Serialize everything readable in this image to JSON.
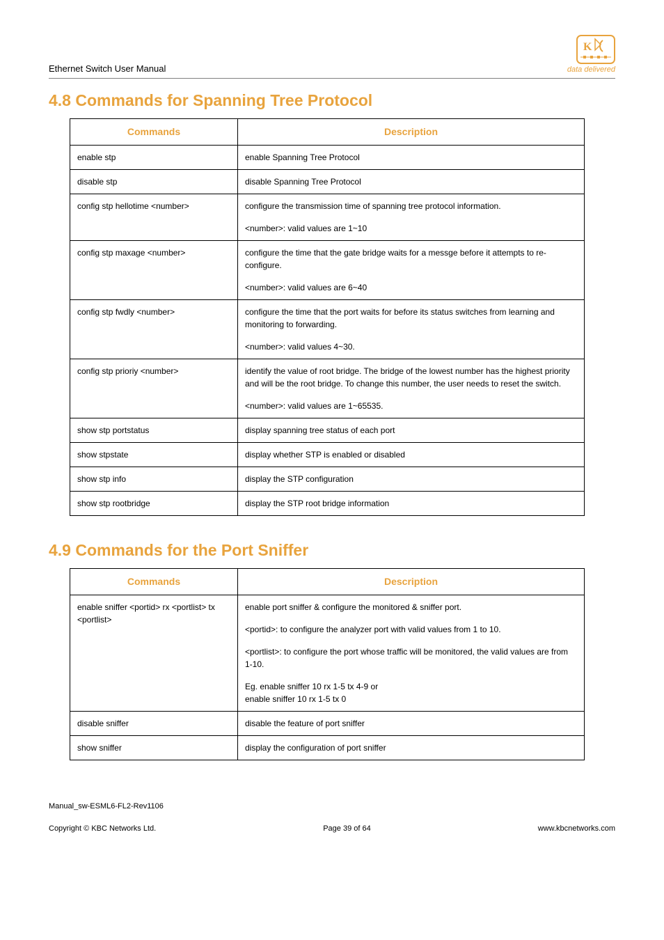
{
  "header": {
    "manual_title": "Ethernet Switch User Manual",
    "logo_tag": "data delivered",
    "logo_color": "#e8a33d"
  },
  "section_48": {
    "title": "4.8 Commands for Spanning Tree Protocol",
    "columns": [
      "Commands",
      "Description"
    ],
    "rows": [
      {
        "cmd": "enable stp",
        "desc": [
          "enable Spanning Tree Protocol"
        ]
      },
      {
        "cmd": "disable stp",
        "desc": [
          "disable Spanning Tree Protocol"
        ]
      },
      {
        "cmd": "config stp hellotime <number>",
        "desc": [
          "configure the transmission time of spanning tree protocol information.",
          "<number>: valid values are 1~10"
        ]
      },
      {
        "cmd": "config stp maxage <number>",
        "desc": [
          "configure the time that the gate bridge waits for a messge before it attempts to re-configure.",
          "<number>: valid values are 6~40"
        ]
      },
      {
        "cmd": "config stp fwdly <number>",
        "desc": [
          "configure the time that the port waits for before its status switches from learning and monitoring to forwarding.",
          "<number>: valid values 4~30."
        ]
      },
      {
        "cmd": "config stp prioriy <number>",
        "desc": [
          "identify the value of root bridge. The bridge of the lowest number has the highest priority and will be the root bridge. To change this number, the user needs to reset the switch.",
          "<number>: valid values are 1~65535."
        ]
      },
      {
        "cmd": "show stp portstatus",
        "desc": [
          "display spanning tree status of each port"
        ]
      },
      {
        "cmd": "show stpstate",
        "desc": [
          "display whether STP is enabled or disabled"
        ]
      },
      {
        "cmd": "show stp info",
        "desc": [
          "display the STP configuration"
        ]
      },
      {
        "cmd": "show stp rootbridge",
        "desc": [
          "display the STP root bridge information"
        ]
      }
    ]
  },
  "section_49": {
    "title": "4.9  Commands for the Port Sniffer",
    "columns": [
      "Commands",
      "Description"
    ],
    "rows": [
      {
        "cmd": "enable sniffer <portid> rx <portlist> tx <portlist>",
        "desc": [
          "enable port sniffer & configure the monitored & sniffer port.",
          "<portid>: to configure the analyzer port with valid values from 1 to 10.",
          "<portlist>: to configure the port whose traffic will be monitored, the valid values are from 1-10.",
          "Eg. enable sniffer 10 rx 1-5 tx 4-9 or\nenable sniffer 10 rx 1-5 tx 0"
        ]
      },
      {
        "cmd": "disable sniffer",
        "desc": [
          "disable the feature of port sniffer"
        ]
      },
      {
        "cmd": "show sniffer",
        "desc": [
          "display the configuration of port sniffer"
        ]
      }
    ]
  },
  "footer": {
    "line1": "Manual_sw-ESML6-FL2-Rev1106",
    "copyright": "Copyright © KBC Networks Ltd.",
    "page": "Page 39 of 64",
    "url": "www.kbcnetworks.com"
  }
}
